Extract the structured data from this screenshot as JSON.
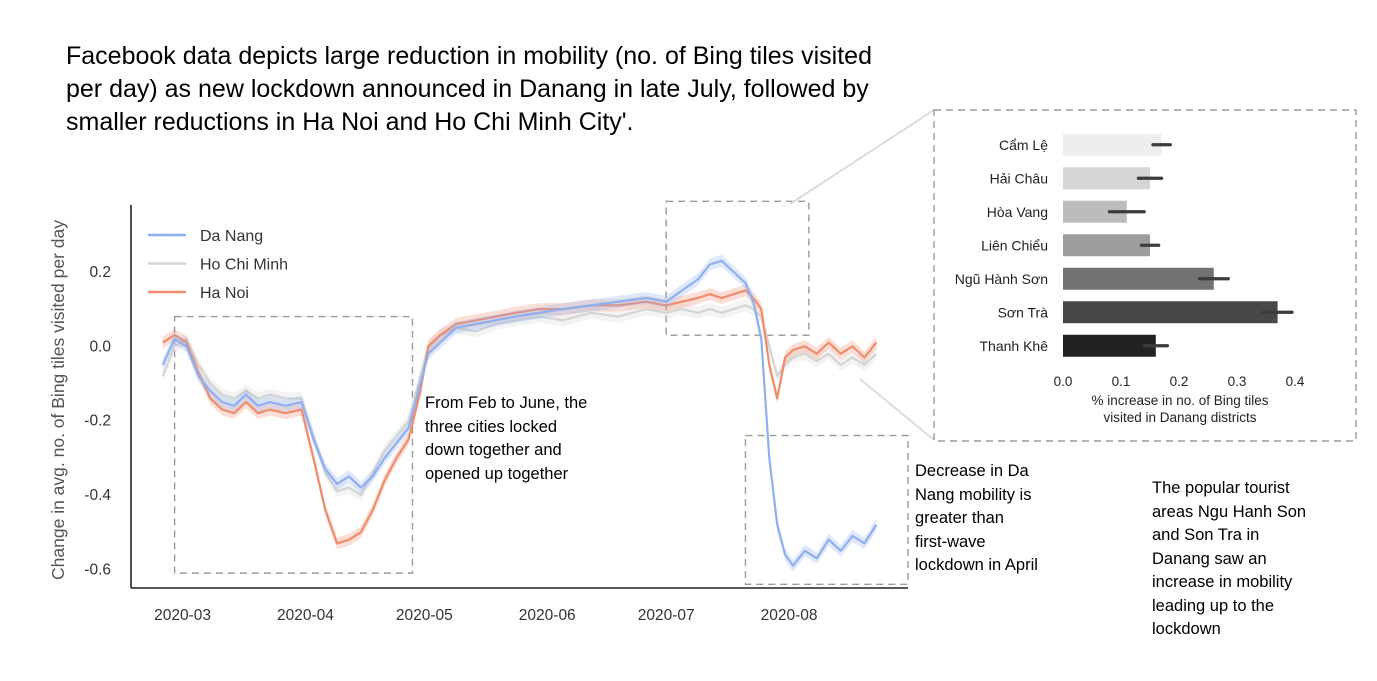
{
  "headline": "Facebook data depicts large reduction in mobility (no. of Bing tiles visited per day) as new lockdown announced in Danang in late July, followed by smaller reductions in Ha Noi and Ho Chi Minh City'.",
  "annotations": {
    "feb_june": [
      "From Feb to June, the",
      "three cities locked",
      "down together and",
      "opened up together"
    ],
    "danang_decrease": [
      "Decrease in Da",
      "Nang mobility is",
      "greater than",
      "first-wave",
      "lockdown in April"
    ],
    "tourist": [
      "The popular tourist",
      "areas Ngu Hanh Son",
      "and Son Tra in",
      "Danang saw an",
      "increase in mobility",
      "leading up to the",
      "lockdown"
    ]
  },
  "colors": {
    "da_nang": "#8fb0f0",
    "ho_chi_minh": "#d4d4d4",
    "ha_noi": "#ef8c6c",
    "axis": "#222222",
    "box": "#9a9a9a"
  },
  "chart_data": [
    {
      "type": "line",
      "title": "",
      "xlabel": "",
      "ylabel": "Change in avg. no. of Bing tiles visited per day",
      "ylim": [
        -0.65,
        0.38
      ],
      "xlim": [
        "2020-02-17",
        "2020-08-31"
      ],
      "x_ticks": [
        "2020-03",
        "2020-04",
        "2020-05",
        "2020-06",
        "2020-07",
        "2020-08"
      ],
      "x_tick_dates": [
        "2020-03-01",
        "2020-04-01",
        "2020-05-01",
        "2020-06-01",
        "2020-07-01",
        "2020-08-01"
      ],
      "y_ticks": [
        0.2,
        0.0,
        -0.2,
        -0.4,
        -0.6
      ],
      "y_tick_labels": [
        "0.2",
        "0.0",
        "-0.2",
        "-0.4",
        "-0.6"
      ],
      "grid": false,
      "legend_position": "top-left",
      "series": [
        {
          "name": "Da Nang",
          "points": [
            [
              "2020-02-25",
              -0.05
            ],
            [
              "2020-02-28",
              0.02
            ],
            [
              "2020-03-02",
              0.0
            ],
            [
              "2020-03-05",
              -0.08
            ],
            [
              "2020-03-08",
              -0.12
            ],
            [
              "2020-03-11",
              -0.15
            ],
            [
              "2020-03-14",
              -0.16
            ],
            [
              "2020-03-17",
              -0.13
            ],
            [
              "2020-03-20",
              -0.16
            ],
            [
              "2020-03-23",
              -0.15
            ],
            [
              "2020-03-27",
              -0.16
            ],
            [
              "2020-03-31",
              -0.15
            ],
            [
              "2020-04-03",
              -0.25
            ],
            [
              "2020-04-06",
              -0.33
            ],
            [
              "2020-04-09",
              -0.37
            ],
            [
              "2020-04-12",
              -0.35
            ],
            [
              "2020-04-15",
              -0.38
            ],
            [
              "2020-04-18",
              -0.35
            ],
            [
              "2020-04-21",
              -0.3
            ],
            [
              "2020-04-24",
              -0.26
            ],
            [
              "2020-04-27",
              -0.22
            ],
            [
              "2020-04-30",
              -0.1
            ],
            [
              "2020-05-02",
              -0.02
            ],
            [
              "2020-05-05",
              0.01
            ],
            [
              "2020-05-09",
              0.05
            ],
            [
              "2020-05-14",
              0.06
            ],
            [
              "2020-05-19",
              0.07
            ],
            [
              "2020-05-24",
              0.08
            ],
            [
              "2020-05-30",
              0.09
            ],
            [
              "2020-06-05",
              0.1
            ],
            [
              "2020-06-12",
              0.11
            ],
            [
              "2020-06-19",
              0.12
            ],
            [
              "2020-06-26",
              0.13
            ],
            [
              "2020-07-01",
              0.12
            ],
            [
              "2020-07-05",
              0.15
            ],
            [
              "2020-07-09",
              0.18
            ],
            [
              "2020-07-12",
              0.22
            ],
            [
              "2020-07-15",
              0.23
            ],
            [
              "2020-07-18",
              0.2
            ],
            [
              "2020-07-21",
              0.17
            ],
            [
              "2020-07-23",
              0.12
            ],
            [
              "2020-07-25",
              0.02
            ],
            [
              "2020-07-27",
              -0.3
            ],
            [
              "2020-07-29",
              -0.48
            ],
            [
              "2020-07-31",
              -0.56
            ],
            [
              "2020-08-02",
              -0.59
            ],
            [
              "2020-08-05",
              -0.55
            ],
            [
              "2020-08-08",
              -0.57
            ],
            [
              "2020-08-11",
              -0.52
            ],
            [
              "2020-08-14",
              -0.55
            ],
            [
              "2020-08-17",
              -0.51
            ],
            [
              "2020-08-20",
              -0.53
            ],
            [
              "2020-08-23",
              -0.48
            ]
          ]
        },
        {
          "name": "Ho Chi Minh",
          "points": [
            [
              "2020-02-25",
              -0.08
            ],
            [
              "2020-02-28",
              0.0
            ],
            [
              "2020-03-02",
              0.02
            ],
            [
              "2020-03-05",
              -0.05
            ],
            [
              "2020-03-08",
              -0.1
            ],
            [
              "2020-03-11",
              -0.13
            ],
            [
              "2020-03-14",
              -0.14
            ],
            [
              "2020-03-17",
              -0.12
            ],
            [
              "2020-03-20",
              -0.14
            ],
            [
              "2020-03-23",
              -0.13
            ],
            [
              "2020-03-27",
              -0.14
            ],
            [
              "2020-03-31",
              -0.14
            ],
            [
              "2020-04-03",
              -0.24
            ],
            [
              "2020-04-06",
              -0.34
            ],
            [
              "2020-04-09",
              -0.39
            ],
            [
              "2020-04-12",
              -0.38
            ],
            [
              "2020-04-15",
              -0.4
            ],
            [
              "2020-04-18",
              -0.34
            ],
            [
              "2020-04-21",
              -0.28
            ],
            [
              "2020-04-24",
              -0.24
            ],
            [
              "2020-04-27",
              -0.2
            ],
            [
              "2020-04-30",
              -0.08
            ],
            [
              "2020-05-02",
              0.0
            ],
            [
              "2020-05-05",
              0.03
            ],
            [
              "2020-05-09",
              0.05
            ],
            [
              "2020-05-14",
              0.04
            ],
            [
              "2020-05-19",
              0.06
            ],
            [
              "2020-05-24",
              0.07
            ],
            [
              "2020-05-30",
              0.08
            ],
            [
              "2020-06-05",
              0.07
            ],
            [
              "2020-06-12",
              0.09
            ],
            [
              "2020-06-19",
              0.08
            ],
            [
              "2020-06-26",
              0.1
            ],
            [
              "2020-07-01",
              0.09
            ],
            [
              "2020-07-05",
              0.1
            ],
            [
              "2020-07-09",
              0.09
            ],
            [
              "2020-07-12",
              0.1
            ],
            [
              "2020-07-15",
              0.09
            ],
            [
              "2020-07-18",
              0.1
            ],
            [
              "2020-07-21",
              0.11
            ],
            [
              "2020-07-23",
              0.1
            ],
            [
              "2020-07-25",
              0.08
            ],
            [
              "2020-07-27",
              0.0
            ],
            [
              "2020-07-29",
              -0.08
            ],
            [
              "2020-07-31",
              -0.05
            ],
            [
              "2020-08-02",
              -0.03
            ],
            [
              "2020-08-05",
              -0.02
            ],
            [
              "2020-08-08",
              -0.04
            ],
            [
              "2020-08-11",
              -0.02
            ],
            [
              "2020-08-14",
              -0.05
            ],
            [
              "2020-08-17",
              -0.03
            ],
            [
              "2020-08-20",
              -0.05
            ],
            [
              "2020-08-23",
              -0.02
            ]
          ]
        },
        {
          "name": "Ha Noi",
          "points": [
            [
              "2020-02-25",
              0.01
            ],
            [
              "2020-02-28",
              0.03
            ],
            [
              "2020-03-02",
              0.01
            ],
            [
              "2020-03-05",
              -0.07
            ],
            [
              "2020-03-08",
              -0.14
            ],
            [
              "2020-03-11",
              -0.17
            ],
            [
              "2020-03-14",
              -0.18
            ],
            [
              "2020-03-17",
              -0.15
            ],
            [
              "2020-03-20",
              -0.18
            ],
            [
              "2020-03-23",
              -0.17
            ],
            [
              "2020-03-27",
              -0.18
            ],
            [
              "2020-03-31",
              -0.17
            ],
            [
              "2020-04-03",
              -0.3
            ],
            [
              "2020-04-06",
              -0.44
            ],
            [
              "2020-04-09",
              -0.53
            ],
            [
              "2020-04-12",
              -0.52
            ],
            [
              "2020-04-15",
              -0.5
            ],
            [
              "2020-04-18",
              -0.44
            ],
            [
              "2020-04-21",
              -0.36
            ],
            [
              "2020-04-24",
              -0.3
            ],
            [
              "2020-04-27",
              -0.25
            ],
            [
              "2020-04-30",
              -0.12
            ],
            [
              "2020-05-02",
              0.0
            ],
            [
              "2020-05-05",
              0.03
            ],
            [
              "2020-05-09",
              0.06
            ],
            [
              "2020-05-14",
              0.07
            ],
            [
              "2020-05-19",
              0.08
            ],
            [
              "2020-05-24",
              0.09
            ],
            [
              "2020-05-30",
              0.1
            ],
            [
              "2020-06-05",
              0.1
            ],
            [
              "2020-06-12",
              0.11
            ],
            [
              "2020-06-19",
              0.11
            ],
            [
              "2020-06-26",
              0.12
            ],
            [
              "2020-07-01",
              0.11
            ],
            [
              "2020-07-05",
              0.12
            ],
            [
              "2020-07-09",
              0.13
            ],
            [
              "2020-07-12",
              0.14
            ],
            [
              "2020-07-15",
              0.13
            ],
            [
              "2020-07-18",
              0.14
            ],
            [
              "2020-07-21",
              0.15
            ],
            [
              "2020-07-23",
              0.13
            ],
            [
              "2020-07-25",
              0.1
            ],
            [
              "2020-07-27",
              -0.05
            ],
            [
              "2020-07-29",
              -0.14
            ],
            [
              "2020-07-31",
              -0.03
            ],
            [
              "2020-08-02",
              -0.01
            ],
            [
              "2020-08-05",
              0.0
            ],
            [
              "2020-08-08",
              -0.02
            ],
            [
              "2020-08-11",
              0.01
            ],
            [
              "2020-08-14",
              -0.02
            ],
            [
              "2020-08-17",
              0.0
            ],
            [
              "2020-08-20",
              -0.03
            ],
            [
              "2020-08-23",
              0.01
            ]
          ]
        }
      ],
      "highlight_boxes": [
        {
          "from": "2020-02-28",
          "to": "2020-04-28",
          "y_from": -0.61,
          "y_to": 0.08
        },
        {
          "from": "2020-07-01",
          "to": "2020-08-06",
          "y_from": 0.03,
          "y_to": 0.39
        },
        {
          "from": "2020-07-21",
          "to": "2020-08-31",
          "y_from": -0.64,
          "y_to": -0.24
        }
      ]
    },
    {
      "type": "bar",
      "orientation": "horizontal",
      "title": "",
      "xlabel": "% increase in no. of Bing tiles visited in Danang districts",
      "xlabel_lines": [
        "% increase in no. of Bing tiles",
        "visited in Danang districts"
      ],
      "xlim": [
        0.0,
        0.4
      ],
      "x_ticks": [
        "0.0",
        "0.1",
        "0.2",
        "0.3",
        "0.4"
      ],
      "categories": [
        "Cẩm Lệ",
        "Hải Châu",
        "Hòa Vang",
        "Liên Chiểu",
        "Ngũ Hành Sơn",
        "Sơn Trà",
        "Thanh Khê"
      ],
      "values": [
        0.17,
        0.15,
        0.11,
        0.15,
        0.26,
        0.37,
        0.16
      ],
      "error": [
        0.015,
        0.02,
        0.03,
        0.015,
        0.025,
        0.025,
        0.02
      ],
      "bar_colors": [
        "#eeeeee",
        "#d6d6d6",
        "#bcbcbc",
        "#9d9d9d",
        "#727272",
        "#484848",
        "#222222"
      ]
    }
  ]
}
